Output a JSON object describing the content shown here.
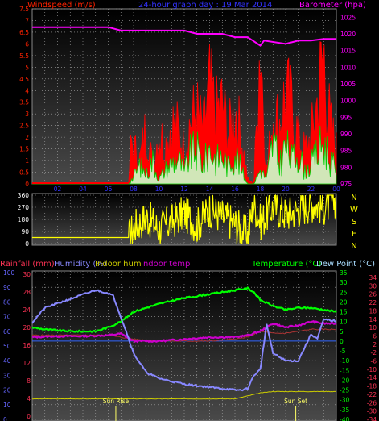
{
  "header": {
    "left_label": "Windspeed (m/s)",
    "center_label": "24-hour graph day : 19 Mar 2014",
    "right_label": "Barometer (hpa)"
  },
  "colors": {
    "wind": "#ff0000",
    "gust_fill": "#ccffcc",
    "gust_line": "#00cc00",
    "barometer": "#ff00ff",
    "direction": "#ffff00",
    "rain": "#ff3355",
    "humidity": "#8888ff",
    "indoor_hum": "#cccc00",
    "indoor_temp": "#cc00cc",
    "temperature": "#00ff00",
    "dewpoint": "#aaddff",
    "humidity_axis": "#6666ff"
  },
  "chart_data": [
    {
      "type": "area",
      "id": "wind",
      "x_ticks": [
        "02",
        "04",
        "06",
        "08",
        "10",
        "12",
        "14",
        "16",
        "18",
        "20",
        "22",
        "00"
      ],
      "y_left": {
        "label": "Windspeed (m/s)",
        "range": [
          0,
          7.5
        ],
        "ticks": [
          "0",
          "0.5",
          "1",
          "1.5",
          "2",
          "2.5",
          "3",
          "3.5",
          "4",
          "4.5",
          "5",
          "5.5",
          "6",
          "6.5",
          "7",
          "7.5"
        ]
      },
      "y_right": {
        "label": "Barometer (hpa)",
        "range": [
          975,
          1027.5
        ],
        "ticks": [
          "975",
          "980",
          "985",
          "990",
          "995",
          "1000",
          "1005",
          "1010",
          "1015",
          "1020",
          "1025"
        ]
      },
      "series": [
        {
          "name": "Windspeed",
          "hours": [
            0,
            7.6,
            7.8,
            8.5,
            9,
            9.5,
            10,
            10.5,
            11,
            11.5,
            12,
            12.5,
            13,
            13.5,
            14,
            14.5,
            15,
            15.5,
            16,
            16.5,
            17,
            17.5,
            18,
            18.5,
            19,
            19.5,
            20,
            20.5,
            21,
            21.5,
            22,
            22.5,
            23,
            23.5,
            24
          ],
          "values": [
            0,
            0,
            1.8,
            1.0,
            2.5,
            0.8,
            2.2,
            1.6,
            2.6,
            2.3,
            1.5,
            2.7,
            3.0,
            2.2,
            4.0,
            2.9,
            3.4,
            2.1,
            3.2,
            2.0,
            0.2,
            0,
            6.4,
            0.4,
            3.0,
            2.6,
            3.8,
            3.2,
            2.0,
            1.4,
            2.0,
            3.5,
            5.5,
            2.5,
            1.5
          ]
        },
        {
          "name": "Gust",
          "hours": [
            0,
            7.6,
            8,
            8.5,
            9,
            9.5,
            10,
            10.5,
            11,
            11.5,
            12,
            12.5,
            13,
            13.5,
            14,
            14.5,
            15,
            15.5,
            16,
            16.5,
            17,
            17.5,
            18,
            18.5,
            19,
            19.5,
            20,
            20.5,
            21,
            21.5,
            22,
            22.5,
            23,
            23.5,
            24
          ],
          "values": [
            0,
            0,
            0.3,
            0.8,
            0.4,
            1.0,
            0.2,
            0.6,
            0.9,
            1.1,
            0.5,
            1.3,
            1.4,
            0.8,
            1.5,
            1.0,
            1.2,
            0.7,
            1.4,
            0.6,
            0,
            0,
            0.6,
            0.2,
            1.8,
            0.8,
            1.6,
            1.0,
            1.4,
            0.5,
            0.8,
            1.3,
            1.8,
            1.0,
            0.6
          ]
        },
        {
          "name": "Barometer",
          "hours": [
            0,
            6,
            7,
            12,
            13,
            15,
            16,
            17,
            18,
            18.3,
            20,
            21,
            22,
            23,
            24
          ],
          "values": [
            1022,
            1022,
            1021,
            1021,
            1020,
            1020,
            1019,
            1019,
            1016.5,
            1018,
            1017,
            1018,
            1018,
            1018.5,
            1018.5
          ]
        }
      ]
    },
    {
      "type": "line",
      "id": "direction",
      "y_ticks": [
        "360",
        "270",
        "180",
        "90",
        "0"
      ],
      "y_range": [
        0,
        360
      ],
      "compass": [
        "N",
        "W",
        "S",
        "E",
        "N"
      ],
      "series": [
        {
          "name": "Wind direction",
          "hours": [
            0,
            7.6,
            8,
            9,
            10,
            11,
            12,
            13,
            14,
            15,
            16,
            17,
            17.5,
            18,
            19,
            20,
            21,
            22,
            23,
            24
          ],
          "values": [
            45,
            45,
            120,
            200,
            110,
            160,
            230,
            130,
            260,
            200,
            150,
            60,
            300,
            160,
            270,
            220,
            250,
            300,
            270,
            330
          ]
        }
      ]
    },
    {
      "type": "line",
      "id": "temp_hum",
      "legend": [
        "Rainfall (mm)",
        "Humidity (%)",
        "Indoor hum",
        "Indoor temp",
        "Temperature (°C)",
        "Dew Point (°C)"
      ],
      "axis_rain": {
        "label": "Rainfall (mm)",
        "ticks": [
          "0",
          "4",
          "8",
          "12",
          "16",
          "20",
          "24",
          "28",
          "30"
        ]
      },
      "axis_humidity": {
        "label": "Humidity (%)",
        "range": [
          0,
          100
        ],
        "ticks": [
          "0",
          "10",
          "20",
          "30",
          "40",
          "50",
          "60",
          "70",
          "80",
          "90",
          "100"
        ]
      },
      "axis_temp": {
        "label": "Temperature (°C)",
        "range": [
          -40,
          35
        ],
        "ticks": [
          "35",
          "30",
          "25",
          "20",
          "15",
          "10",
          "5",
          "0",
          "-5",
          "-10",
          "-15",
          "-20",
          "-25",
          "-30",
          "-35",
          "-40"
        ]
      },
      "axis_dew": {
        "label": "Dew Point (°C)",
        "ticks": [
          "34",
          "30",
          "26",
          "22",
          "18",
          "14",
          "10",
          "6",
          "2",
          "-2",
          "-6",
          "-10",
          "-14",
          "-18",
          "-22",
          "-26",
          "-30",
          "-34"
        ]
      },
      "series": [
        {
          "name": "Humidity",
          "hours": [
            0,
            1,
            3,
            4,
            5,
            6,
            6.4,
            7.5,
            8,
            9,
            10,
            12,
            14,
            15,
            16,
            16.5,
            17,
            17.5,
            18,
            18.5,
            19,
            20,
            21,
            22,
            22.5,
            23,
            24
          ],
          "values": [
            66,
            76,
            82,
            85,
            88,
            86,
            84,
            58,
            45,
            32,
            28,
            24,
            22,
            21,
            20,
            20,
            21,
            30,
            34,
            65,
            45,
            40,
            40,
            58,
            55,
            68,
            67
          ]
        },
        {
          "name": "Temperature",
          "hours": [
            0,
            1,
            3,
            4,
            5,
            6,
            7,
            8,
            10,
            12,
            14,
            15,
            16,
            17,
            17.5,
            18,
            19,
            20,
            21,
            22,
            23,
            24
          ],
          "values": [
            7,
            6,
            5,
            5,
            5,
            7,
            10,
            15,
            19,
            22,
            24,
            25,
            26,
            27,
            25,
            21,
            18,
            16,
            17,
            17,
            16,
            15
          ]
        },
        {
          "name": "Indoor temp",
          "hours": [
            0,
            2,
            4,
            6,
            7,
            8,
            10,
            12,
            14,
            16,
            17,
            18,
            19,
            20,
            21,
            22,
            23,
            24
          ],
          "values": [
            2,
            2.5,
            2.5,
            3,
            3.8,
            0,
            0,
            1,
            2,
            2,
            3,
            5,
            9,
            7,
            8,
            10,
            9,
            9
          ]
        },
        {
          "name": "Indoor hum",
          "hours": [
            0,
            16,
            16.5,
            17,
            18,
            19,
            24
          ],
          "values": [
            14,
            14,
            15,
            16,
            18,
            19,
            19
          ]
        },
        {
          "name": "Dew Point",
          "hours": [
            0,
            6,
            8,
            10,
            14,
            16,
            17,
            18,
            19,
            20,
            21,
            22,
            23,
            24
          ],
          "values": [
            3,
            3,
            1,
            0,
            0,
            1,
            2,
            5,
            4,
            4,
            5,
            6,
            6,
            6
          ]
        }
      ],
      "annotations": [
        {
          "label": "Sun Rise",
          "hour": 6.6
        },
        {
          "label": "Sun Set",
          "hour": 20.8
        }
      ]
    }
  ]
}
